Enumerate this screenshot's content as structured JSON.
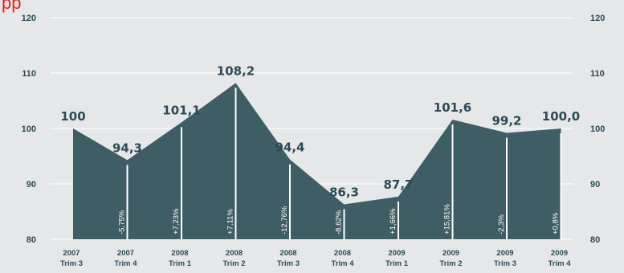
{
  "corner_text": "pp",
  "colors": {
    "background": "#e6e7e8",
    "area": "#3f5d64",
    "text": "#2c4b55",
    "accent": "#e2231a",
    "grid": "#ffffff"
  },
  "chart_data": {
    "type": "area",
    "categories": [
      [
        "2007",
        "Trim 3"
      ],
      [
        "2007",
        "Trim 4"
      ],
      [
        "2008",
        "Trim 1"
      ],
      [
        "2008",
        "Trim 2"
      ],
      [
        "2008",
        "Trim 3"
      ],
      [
        "2008",
        "Trim 4"
      ],
      [
        "2009",
        "Trim 1"
      ],
      [
        "2009",
        "Trim 2"
      ],
      [
        "2009",
        "Trim 3"
      ],
      [
        "2009",
        "Trim 4"
      ]
    ],
    "values": [
      100,
      94.3,
      101.1,
      108.2,
      94.4,
      86.3,
      87.7,
      101.6,
      99.2,
      100.0
    ],
    "value_labels": [
      "100",
      "94,3",
      "101,1",
      "108,2",
      "94,4",
      "86,3",
      "87,7",
      "101,6",
      "99,2",
      "100,0"
    ],
    "changes": [
      null,
      "-5,75%",
      "+7,23%",
      "+7,11%",
      "-12,76%",
      "-8,62%",
      "+1,66%",
      "+15,81%",
      "-2,3%",
      "+0,8%"
    ],
    "ylim": [
      80,
      120
    ],
    "yticks": [
      80,
      90,
      100,
      110,
      120
    ],
    "grid": true
  }
}
